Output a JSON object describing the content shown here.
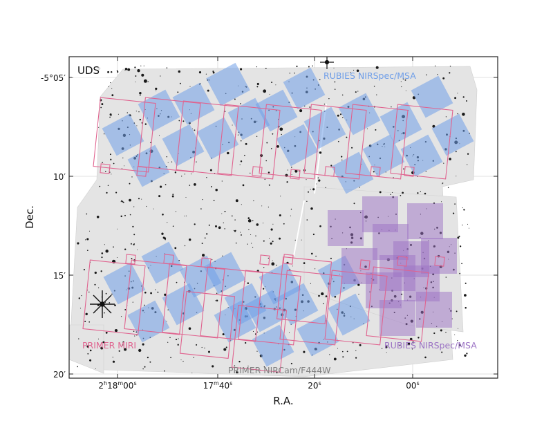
{
  "field_label": "UDS",
  "axes": {
    "xlabel": "R.A.",
    "ylabel": "Dec.",
    "x_ticks": [
      {
        "pre": "2",
        "s1": "h",
        "mid": "18",
        "s2": "m",
        "post": "00",
        "s3": "s"
      },
      {
        "pre": "",
        "s1": "",
        "mid": "17",
        "s2": "m",
        "post": "40",
        "s3": "s"
      },
      {
        "pre": "",
        "s1": "",
        "mid": "",
        "s2": "",
        "post": "20",
        "s3": "s"
      },
      {
        "pre": "",
        "s1": "",
        "mid": "",
        "s2": "",
        "post": "00",
        "s3": "s"
      }
    ],
    "y_ticks": [
      "-5°05′",
      "10′",
      "15′",
      "20′"
    ]
  },
  "legend_labels": {
    "rubies_blue": "RUBIES NIRSpec/MSA",
    "primer_miri": "PRIMER MIRI",
    "rubies_purple": "RUBIES NIRSpec/MSA",
    "primer_nircam": "PRIMER NIRCam/F444W"
  },
  "colors": {
    "rubies_blue": "#6f9ee8",
    "rubies_purple": "#9b72c4",
    "primer_miri": "#e0638f",
    "primer_nircam": "#808080",
    "mosaic_fill": "#e4e4e4"
  }
}
